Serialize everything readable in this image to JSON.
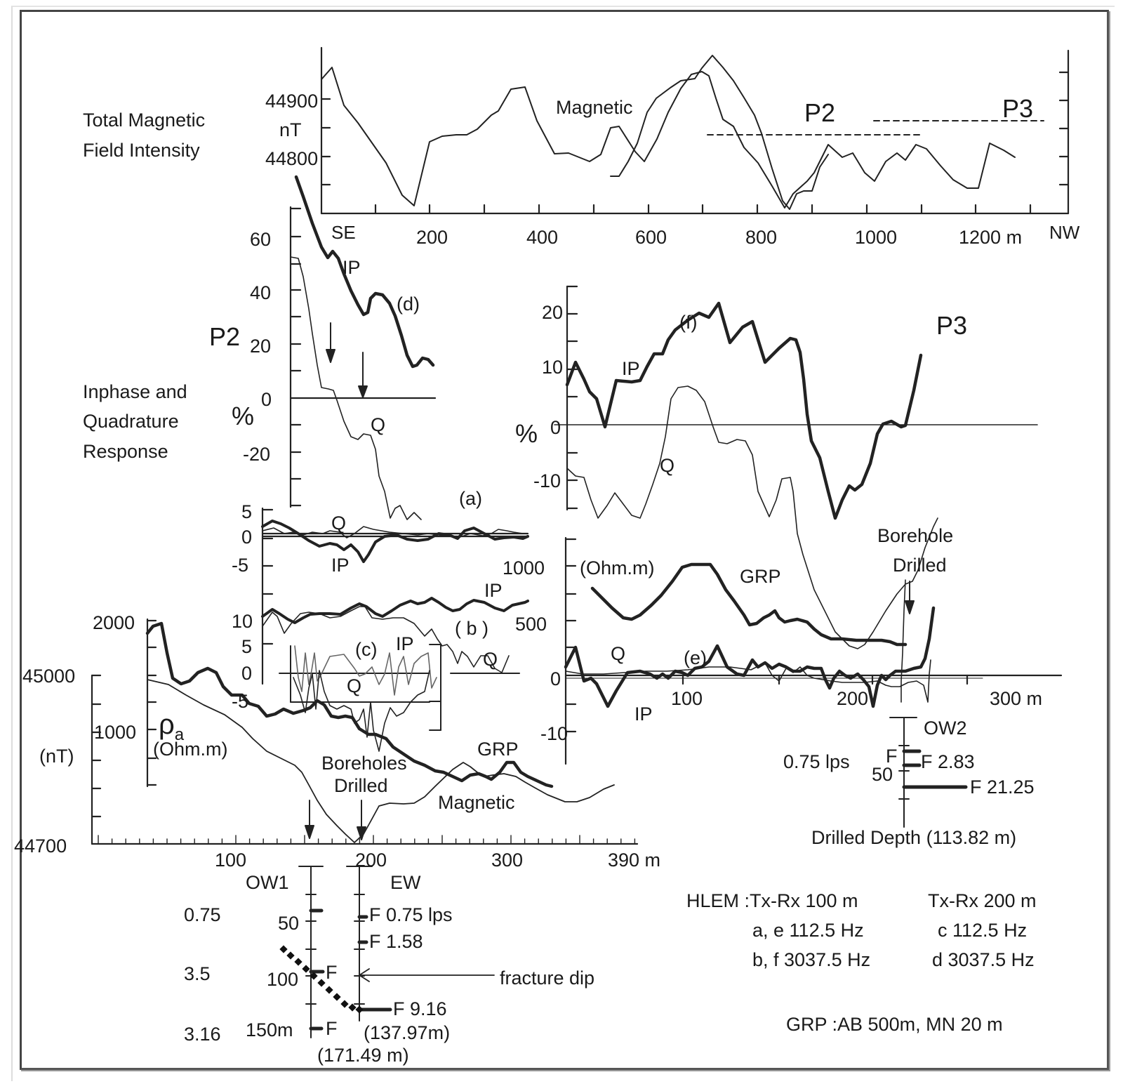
{
  "chart_data": [
    {
      "id": "total-magnetic",
      "type": "line",
      "title": "Total Magnetic Field Intensity",
      "ylabel": "nT",
      "ytick_labels": [
        "44900",
        "44800"
      ],
      "xtick_labels": [
        "200",
        "400",
        "600",
        "800",
        "1000",
        "1200 m"
      ],
      "x_start_label": "SE",
      "x_end_label": "NW",
      "curve_label": "Magnetic",
      "annotations": [
        "P2",
        "P3"
      ],
      "xlim": [
        0,
        1330
      ],
      "series": [
        {
          "name": "Magnetic (regional)",
          "x": [
            0,
            25,
            50,
            100,
            150,
            175,
            200,
            250,
            300,
            350,
            375,
            400,
            450,
            500,
            550,
            575,
            600,
            650,
            700,
            720,
            740,
            760,
            800,
            830,
            870,
            890,
            920,
            940,
            960,
            1000,
            1020,
            1060,
            1090,
            1110,
            1150,
            1180,
            1230,
            1260,
            1290,
            1330
          ],
          "y": [
            44960,
            44975,
            44905,
            44850,
            44770,
            44745,
            44845,
            44855,
            44855,
            44890,
            44925,
            44925,
            44820,
            44815,
            44790,
            44845,
            44840,
            44795,
            44870,
            44985,
            44965,
            44920,
            44840,
            44785,
            44730,
            44770,
            44790,
            44830,
            44800,
            44810,
            44780,
            44760,
            44810,
            44830,
            44820,
            44770,
            44750,
            44830,
            44810,
            44800
          ]
        },
        {
          "name": "Magnetic (detailed P2)",
          "x": [
            570,
            600,
            650,
            680,
            700,
            720,
            740,
            760,
            800,
            840,
            870,
            890,
            910,
            940
          ],
          "y": [
            44755,
            44755,
            44870,
            44935,
            44960,
            44955,
            44880,
            44860,
            44790,
            44760,
            44730,
            44750,
            44760,
            44830
          ]
        }
      ]
    },
    {
      "id": "p2-hlem-d",
      "type": "line",
      "title": "P2 (d) Inphase and Quadrature Response",
      "ylabel": "%",
      "ytick_labels": [
        "60",
        "40",
        "20",
        "0",
        "-20"
      ],
      "ylim": [
        -40,
        70
      ],
      "series": [
        {
          "name": "IP",
          "x": [
            0,
            20,
            40,
            60,
            80,
            100,
            120,
            140,
            160,
            180,
            200,
            220
          ],
          "y": [
            72,
            58,
            52,
            55,
            42,
            32,
            38,
            35,
            24,
            12,
            15,
            12
          ]
        },
        {
          "name": "Q",
          "x": [
            0,
            10,
            20,
            30,
            40,
            50,
            60,
            80,
            100,
            120,
            140,
            160,
            180
          ],
          "y": [
            52,
            50,
            40,
            20,
            8,
            2,
            2,
            -12,
            -20,
            -16,
            -28,
            -40,
            -38
          ]
        }
      ]
    },
    {
      "id": "p2-hlem-a",
      "type": "line",
      "title": "(a)",
      "ytick_labels": [
        "5",
        "0",
        "-5"
      ],
      "series": [
        {
          "name": "IP",
          "x": [
            0,
            20,
            40,
            60,
            80,
            100,
            120,
            140,
            160,
            180,
            200
          ],
          "y": [
            1,
            1.5,
            0,
            -2,
            -3,
            -5,
            -1,
            -1,
            -1.5,
            0,
            -1
          ]
        },
        {
          "name": "Q",
          "x": [
            0,
            20,
            40,
            60,
            80,
            100,
            120,
            140,
            160,
            180,
            200
          ],
          "y": [
            0.5,
            1,
            0.5,
            -0.5,
            1,
            0.8,
            0.5,
            0,
            1,
            0.5,
            0.5
          ]
        }
      ]
    },
    {
      "id": "p2-hlem-b",
      "type": "line",
      "title": "( b )",
      "ytick_labels": [
        "10"
      ],
      "series": [
        {
          "name": "IP",
          "x": [
            0,
            20,
            40,
            60,
            80,
            100,
            120,
            140,
            160,
            180,
            200
          ],
          "y": [
            10,
            12,
            9,
            10,
            10,
            12,
            10,
            13,
            14,
            10,
            11
          ]
        },
        {
          "name": "Q",
          "x": [
            0,
            20,
            40,
            60,
            80,
            100,
            120,
            140,
            160,
            180,
            200
          ],
          "y": [
            8,
            10,
            2,
            8,
            9,
            11,
            8,
            7,
            3,
            -1,
            -5
          ]
        }
      ]
    },
    {
      "id": "p2-hlem-c",
      "type": "line",
      "title": "(c)",
      "ytick_labels": [
        "5",
        "0",
        "-5"
      ],
      "series_labels": [
        "IP",
        "Q"
      ]
    },
    {
      "id": "p2-grp-magnetic",
      "type": "line",
      "title": "P2 GRP and Magnetic",
      "y1label": "ρa (Ohm.m)",
      "y1tick_labels": [
        "2000",
        "1000"
      ],
      "y2label": "(nT)",
      "y2tick_labels": [
        "45000",
        "44700"
      ],
      "xtick_labels": [
        "100",
        "200",
        "300",
        "390 m"
      ],
      "xlim": [
        0,
        390
      ],
      "annotations": [
        "Boreholes Drilled"
      ],
      "series": [
        {
          "name": "GRP",
          "x": [
            0,
            10,
            20,
            40,
            60,
            80,
            100,
            120,
            140,
            160,
            180,
            200,
            220,
            240,
            260,
            280,
            300,
            320,
            340
          ],
          "y": [
            1850,
            1950,
            1450,
            1550,
            1350,
            1300,
            1180,
            1200,
            1120,
            1100,
            950,
            900,
            850,
            700,
            600,
            580,
            630,
            480,
            380
          ]
        },
        {
          "name": "Magnetic",
          "x": [
            0,
            40,
            80,
            120,
            140,
            160,
            180,
            190,
            200,
            220,
            240,
            260,
            280,
            300,
            340,
            370,
            390
          ],
          "y": [
            44970,
            44945,
            44900,
            44860,
            44800,
            44750,
            44720,
            44705,
            44745,
            44770,
            44780,
            44810,
            44800,
            44800,
            44780,
            44770,
            44790
          ]
        }
      ]
    },
    {
      "id": "p3-hlem-f",
      "type": "line",
      "title": "P3 (f)",
      "ylabel": "%",
      "ytick_labels": [
        "20",
        "10",
        "0",
        "-10"
      ],
      "ylim": [
        -15,
        25
      ],
      "series": [
        {
          "name": "IP",
          "x": [
            0,
            10,
            20,
            30,
            40,
            50,
            60,
            70,
            80,
            90,
            100,
            110,
            120,
            130,
            140,
            150,
            160,
            170,
            180,
            190,
            200,
            210,
            220,
            230,
            240,
            250,
            260,
            270,
            280,
            290,
            300
          ],
          "y": [
            7,
            11,
            6,
            4,
            -1,
            8,
            8,
            8,
            13,
            13,
            18,
            20,
            21,
            20,
            22,
            15,
            18,
            19,
            12,
            15,
            16,
            2,
            -8,
            -17,
            -10,
            -12,
            -6,
            1,
            2,
            0,
            13
          ]
        },
        {
          "name": "Q",
          "x": [
            0,
            10,
            20,
            30,
            40,
            50,
            60,
            70,
            80,
            90,
            100,
            110,
            120,
            130,
            140,
            150,
            160,
            170,
            180,
            190,
            200,
            210
          ],
          "y": [
            -8,
            -10,
            -17,
            -12,
            -16,
            -15,
            -10,
            -2,
            7,
            7,
            6,
            -4,
            -3,
            -4,
            -12,
            -16,
            -10,
            -11,
            -30,
            -40,
            -45,
            -35
          ]
        }
      ]
    },
    {
      "id": "p3-grp-e",
      "type": "line",
      "title": "P3 GRP and (e)",
      "y1label": "(Ohm.m)",
      "y1tick_labels": [
        "1000",
        "500",
        "0",
        "-10"
      ],
      "xtick_labels": [
        "100",
        "200",
        "300 m"
      ],
      "xlim": [
        0,
        310
      ],
      "annotations": [
        "Borehole Drilled"
      ],
      "series": [
        {
          "name": "GRP",
          "x": [
            20,
            40,
            60,
            80,
            90,
            100,
            110,
            120,
            140,
            150,
            160,
            170,
            180,
            200,
            220,
            240
          ],
          "y": [
            800,
            650,
            520,
            700,
            900,
            1010,
            1010,
            1000,
            650,
            480,
            600,
            480,
            520,
            400,
            320,
            300
          ]
        },
        {
          "name": "IP (e)",
          "x": [
            0,
            10,
            20,
            30,
            40,
            50,
            60,
            80,
            100,
            120,
            140,
            150,
            160,
            180,
            200,
            220,
            230,
            240,
            250,
            270,
            280,
            290
          ],
          "y": [
            1,
            5,
            -1,
            -1,
            -6,
            -2,
            0,
            1,
            0,
            1,
            4,
            0,
            1,
            1,
            1,
            1,
            -6,
            1,
            -1,
            1,
            3,
            20
          ]
        },
        {
          "name": "Q (e)",
          "x": [
            0,
            40,
            80,
            120,
            160,
            200,
            240,
            270,
            280,
            290
          ],
          "y": [
            0.5,
            0.3,
            0.5,
            1,
            0.8,
            0.5,
            -1,
            -2,
            -10,
            25
          ]
        }
      ]
    }
  ],
  "labels": {
    "tmf_title_1": "Total Magnetic",
    "tmf_title_2": "Field Intensity",
    "tmf_unit": "nT",
    "tmf_y_44900": "44900",
    "tmf_y_44800": "44800",
    "tmf_curve": "Magnetic",
    "tmf_p2": "P2",
    "tmf_p3": "P3",
    "tmf_x": [
      "SE",
      "200",
      "400",
      "600",
      "800",
      "1000",
      "1200 m",
      "NW"
    ],
    "p2_title": "P2",
    "p2_resp_1": "Inphase and",
    "p2_resp_2": "Quadrature",
    "p2_resp_3": "Response",
    "p2_percent": "%",
    "p2_y": [
      "60",
      "40",
      "20",
      "0",
      "-20"
    ],
    "p2_ip": "IP",
    "p2_d": "(d)",
    "p2_q": "Q",
    "a_y": [
      "5",
      "0",
      "-5"
    ],
    "a_label": "(a)",
    "a_q": "Q",
    "a_ip": "IP",
    "b_y10": "10",
    "b_y5": "5",
    "b_y0": "0",
    "b_ym5": "-5",
    "b_ip": "IP",
    "b_label": "( b )",
    "b_q": "Q",
    "c_label": "(c)",
    "c_ip": "IP",
    "c_q": "Q",
    "grp_2000": "2000",
    "grp_1000": "1000",
    "rho": "ρ",
    "rho_sub": "a",
    "rho_unit": "(Ohm.m)",
    "mag_45000": "45000",
    "mag_44700": "44700",
    "mag_unit": "(nT)",
    "p2_grp": "GRP",
    "p2_boreholes_1": "Boreholes",
    "p2_boreholes_2": "Drilled",
    "p2_magnetic": "Magnetic",
    "p2_x": [
      "100",
      "200",
      "300",
      "390 m"
    ],
    "ow1": "OW1",
    "ew": "EW",
    "ow1_50": "50",
    "ow1_100": "100",
    "ow1_150": "150m",
    "ow1_y_075": "0.75",
    "ow1_y_35": "3.5",
    "ow1_y_316": "3.16",
    "ow1_f100": "F",
    "ow1_f150": "F",
    "ow1_depth": "(171.49 m)",
    "ew_f1": "F  0.75 lps",
    "ew_f2": "F  1.58",
    "ew_f3": "F 9.16",
    "ew_depth": "(137.97m)",
    "fracture_dip": "fracture dip",
    "p3_title": "P3",
    "p3_percent": "%",
    "p3_y": [
      "20",
      "10",
      "0",
      "-10"
    ],
    "p3_f": "(f)",
    "p3_ip": "IP",
    "p3_q": "Q",
    "p3_borehole_1": "Borehole",
    "p3_borehole_2": "Drilled",
    "p3_ohm": "(Ohm.m)",
    "p3_grp": "GRP",
    "p3_y2": [
      "1000",
      "500",
      "0",
      "-10"
    ],
    "p3_e_q": "Q",
    "p3_e": "(e)",
    "p3_e_ip": "IP",
    "p3_x": [
      "100",
      "200",
      "300 m"
    ],
    "ow2": "OW2",
    "ow2_left": "0.75  lps",
    "ow2_f1": "F",
    "ow2_50": "50",
    "ow2_f2": "F   2.83",
    "ow2_f3": "F   21.25",
    "ow2_depth": "Drilled Depth (113.82 m)",
    "legend_hlem_1": "HLEM :Tx-Rx 100 m",
    "legend_hlem_2": "Tx-Rx  200 m",
    "legend_ae": "a, e  112.5 Hz",
    "legend_c": "c  112.5 Hz",
    "legend_bf": "b, f  3037.5 Hz",
    "legend_d": "d  3037.5 Hz",
    "legend_grp": "GRP :AB 500m, MN 20 m"
  }
}
